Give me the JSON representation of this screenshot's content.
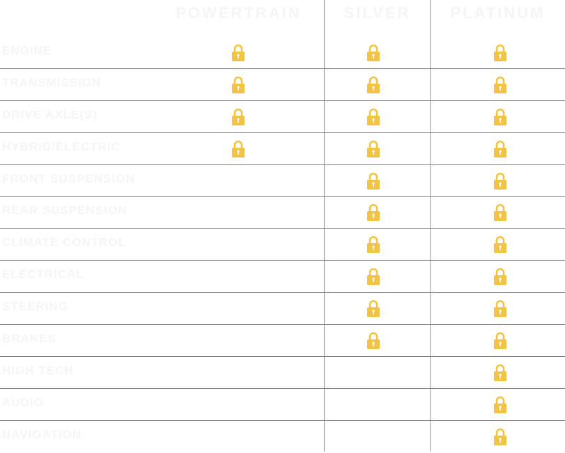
{
  "colors": {
    "lock": "#f2c443",
    "text": "#f5f5f5",
    "divider": "#7a7a7a"
  },
  "columns": [
    "POWERTRAIN",
    "SILVER",
    "PLATINUM"
  ],
  "rows": [
    {
      "label": "ENGINE",
      "covered": [
        true,
        true,
        true
      ]
    },
    {
      "label": "TRANSMISSION",
      "covered": [
        true,
        true,
        true
      ]
    },
    {
      "label": "DRIVE AXLE(S)",
      "covered": [
        true,
        true,
        true
      ]
    },
    {
      "label": "HYBRID/ELECTRIC",
      "covered": [
        true,
        true,
        true
      ]
    },
    {
      "label": "FRONT SUSPENSION",
      "covered": [
        false,
        true,
        true
      ]
    },
    {
      "label": "REAR SUSPENSION",
      "covered": [
        false,
        true,
        true
      ]
    },
    {
      "label": "CLIMATE CONTROL",
      "covered": [
        false,
        true,
        true
      ]
    },
    {
      "label": "ELECTRICAL",
      "covered": [
        false,
        true,
        true
      ]
    },
    {
      "label": "STEERING",
      "covered": [
        false,
        true,
        true
      ]
    },
    {
      "label": "BRAKES",
      "covered": [
        false,
        true,
        true
      ]
    },
    {
      "label": "HIGH TECH",
      "covered": [
        false,
        false,
        true
      ]
    },
    {
      "label": "AUDIO",
      "covered": [
        false,
        false,
        true
      ]
    },
    {
      "label": "NAVIGATION",
      "covered": [
        false,
        false,
        true
      ]
    }
  ],
  "icon": "lock-icon"
}
